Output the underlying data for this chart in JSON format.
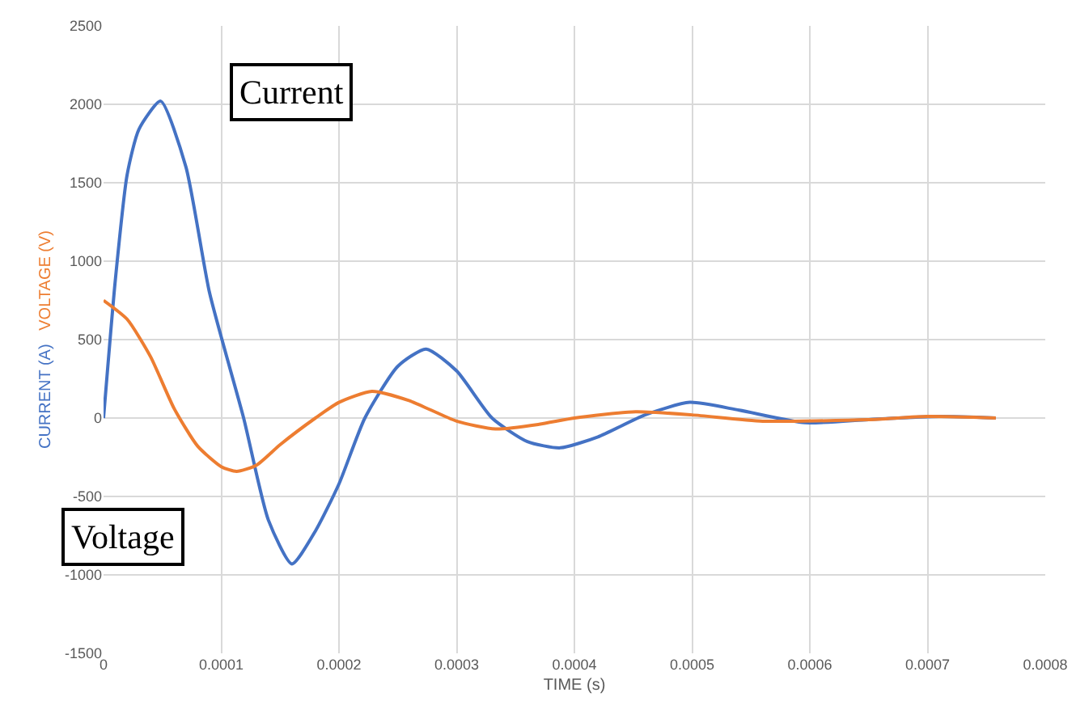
{
  "chart_data": {
    "type": "line",
    "xlabel": "TIME (s)",
    "ylabel": "CURRENT (A)",
    "y2label": "VOLTAGE (V)",
    "annotations": [
      "Current",
      "Voltage"
    ],
    "series": [
      {
        "color": "#4472c4",
        "x": [
          0,
          1e-05,
          2e-05,
          3e-05,
          4.85e-05,
          7e-05,
          9e-05,
          0.000119,
          0.00014,
          0.00016,
          0.00018,
          0.0002,
          0.000222,
          0.00025,
          0.000274,
          0.0003,
          0.00033,
          0.00036,
          0.000388,
          0.00042,
          0.00046,
          0.000498,
          0.00054,
          0.000596,
          0.00065,
          0.00071,
          0.000758
        ],
        "values": [
          0,
          880,
          1550,
          1840,
          2020,
          1600,
          800,
          0,
          -650,
          -930,
          -720,
          -420,
          0,
          330,
          440,
          300,
          0,
          -150,
          -190,
          -120,
          20,
          100,
          50,
          -30,
          -10,
          10,
          0
        ]
      },
      {
        "color": "#ed7d31",
        "x": [
          0,
          2e-05,
          4e-05,
          6e-05,
          8e-05,
          0.0001,
          0.000113,
          0.00013,
          0.00015,
          0.00018,
          0.0002,
          0.000228,
          0.00026,
          0.0003,
          0.000333,
          0.00037,
          0.0004,
          0.000452,
          0.0005,
          0.00056,
          0.00065,
          0.0007,
          0.000758
        ],
        "values": [
          750,
          630,
          390,
          60,
          -180,
          -310,
          -340,
          -300,
          -170,
          0,
          100,
          170,
          110,
          -20,
          -70,
          -40,
          0,
          40,
          20,
          -20,
          -10,
          10,
          0
        ]
      }
    ],
    "xlim": [
      0,
      0.0008
    ],
    "xticks": [
      0,
      0.0001,
      0.0002,
      0.0003,
      0.0004,
      0.0005,
      0.0006,
      0.0007,
      0.0008
    ],
    "ylim": [
      -1500,
      2500
    ],
    "yticks": [
      -1500,
      -1000,
      -500,
      0,
      500,
      1000,
      1500,
      2000,
      2500
    ],
    "grid": true,
    "marker": "none",
    "line_style": "solid"
  }
}
